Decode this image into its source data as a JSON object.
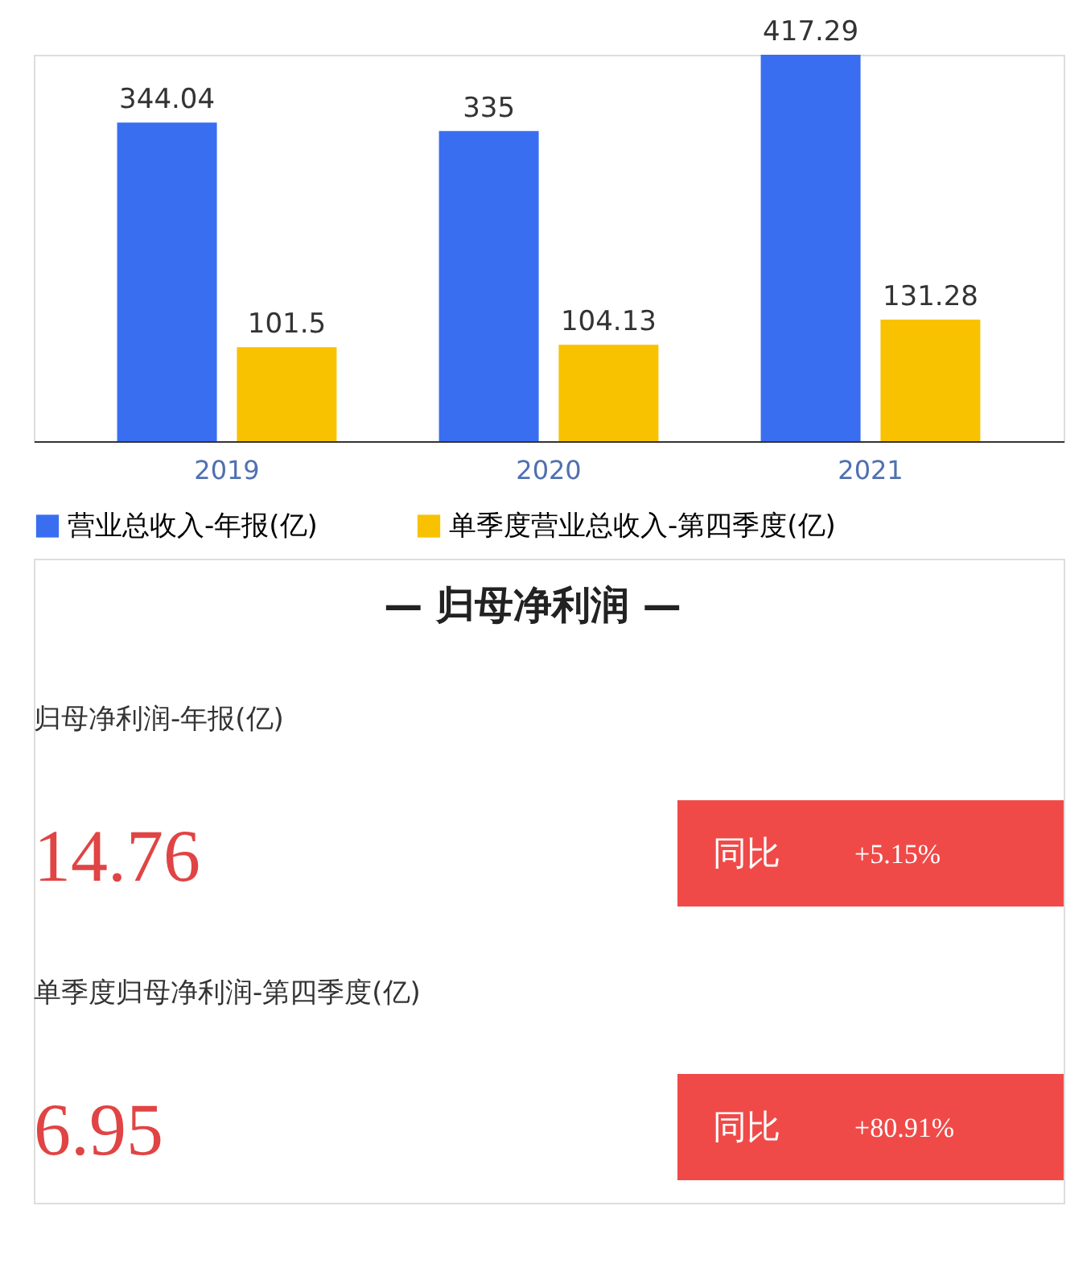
{
  "chart_data": [
    {
      "type": "bar",
      "categories": [
        "2019",
        "2020",
        "2021"
      ],
      "series": [
        {
          "name": "营业总收入-年报(亿)",
          "color": "#3a6ef0",
          "values": [
            344.04,
            335,
            417.29
          ]
        },
        {
          "name": "单季度营业总收入-第四季度(亿)",
          "color": "#f8c200",
          "values": [
            101.5,
            104.13,
            131.28
          ]
        }
      ],
      "data_labels": true,
      "legend": "bottom",
      "grid": false
    },
    {
      "type": "other",
      "title": "— 归母净利润 —",
      "annotations": [
        "归母净利润-年报(亿)",
        "14.76",
        "同比",
        "+5.15%",
        "单季度归母净利润-第四季度(亿)",
        "6.95",
        "同比",
        "+80.91%"
      ]
    }
  ]
}
